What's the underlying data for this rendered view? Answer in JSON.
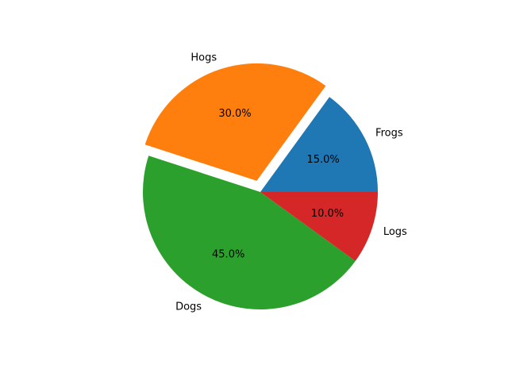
{
  "chart_data": {
    "type": "pie",
    "title": "",
    "labels": [
      "Frogs",
      "Hogs",
      "Dogs",
      "Logs"
    ],
    "values": [
      15,
      30,
      45,
      10
    ],
    "autopct": [
      "15.0%",
      "30.0%",
      "45.0%",
      "10.0%"
    ],
    "exploded": [
      false,
      true,
      false,
      false
    ],
    "colors": [
      "#1f77b4",
      "#ff7f0e",
      "#2ca02c",
      "#d62728"
    ],
    "start_angle_deg": 0,
    "direction": "counterclockwise",
    "legend": "none"
  }
}
